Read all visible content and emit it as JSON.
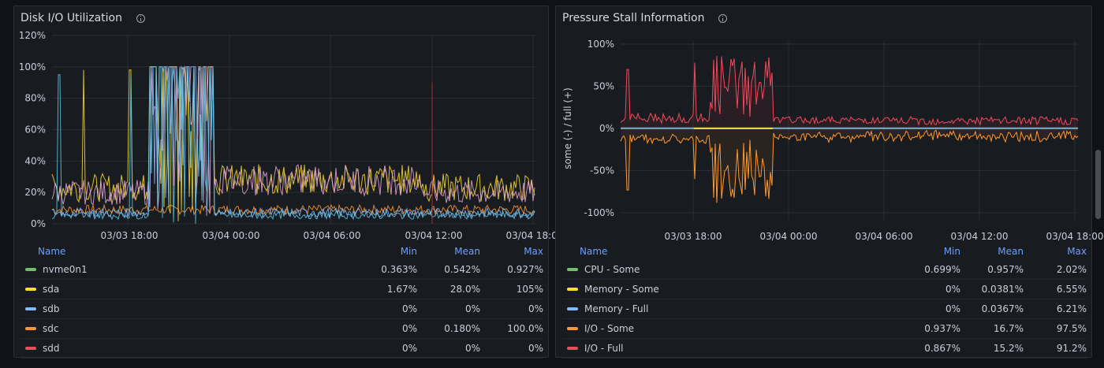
{
  "panels": {
    "disk": {
      "title": "Disk I/O Utilization",
      "info_icon": "info-circle-icon",
      "y_ticks": [
        "120%",
        "100%",
        "80%",
        "60%",
        "40%",
        "20%",
        "0%"
      ],
      "x_ticks": [
        "03/03 18:00",
        "03/04 00:00",
        "03/04 06:00",
        "03/04 12:00",
        "03/04 18:00"
      ],
      "legend_headers": {
        "name": "Name",
        "min": "Min",
        "mean": "Mean",
        "max": "Max"
      },
      "legend": [
        {
          "name": "nvme0n1",
          "color": "#73bf69",
          "min": "0.363%",
          "mean": "0.542%",
          "max": "0.927%"
        },
        {
          "name": "sda",
          "color": "#fade2a",
          "min": "1.67%",
          "mean": "28.0%",
          "max": "105%"
        },
        {
          "name": "sdb",
          "color": "#8ab8ff",
          "min": "0%",
          "mean": "0%",
          "max": "0%"
        },
        {
          "name": "sdc",
          "color": "#ff9830",
          "min": "0%",
          "mean": "0.180%",
          "max": "100.0%"
        },
        {
          "name": "sdd",
          "color": "#f2495c",
          "min": "0%",
          "mean": "0%",
          "max": "0%"
        }
      ]
    },
    "psi": {
      "title": "Pressure Stall Information",
      "info_icon": "info-circle-icon",
      "y_axis_label": "some (-) / full (+)",
      "y_ticks": [
        "100%",
        "50%",
        "0%",
        "-50%",
        "-100%"
      ],
      "x_ticks": [
        "03/03 18:00",
        "03/04 00:00",
        "03/04 06:00",
        "03/04 12:00",
        "03/04 18:00"
      ],
      "legend_headers": {
        "name": "Name",
        "min": "Min",
        "mean": "Mean",
        "max": "Max"
      },
      "legend": [
        {
          "name": "CPU - Some",
          "color": "#73bf69",
          "min": "0.699%",
          "mean": "0.957%",
          "max": "2.02%"
        },
        {
          "name": "Memory - Some",
          "color": "#fade2a",
          "min": "0%",
          "mean": "0.0381%",
          "max": "6.55%"
        },
        {
          "name": "Memory - Full",
          "color": "#8ab8ff",
          "min": "0%",
          "mean": "0.0367%",
          "max": "6.21%"
        },
        {
          "name": "I/O - Some",
          "color": "#ff9830",
          "min": "0.937%",
          "mean": "16.7%",
          "max": "97.5%"
        },
        {
          "name": "I/O - Full",
          "color": "#f2495c",
          "min": "0.867%",
          "mean": "15.2%",
          "max": "91.2%"
        }
      ]
    }
  }
}
